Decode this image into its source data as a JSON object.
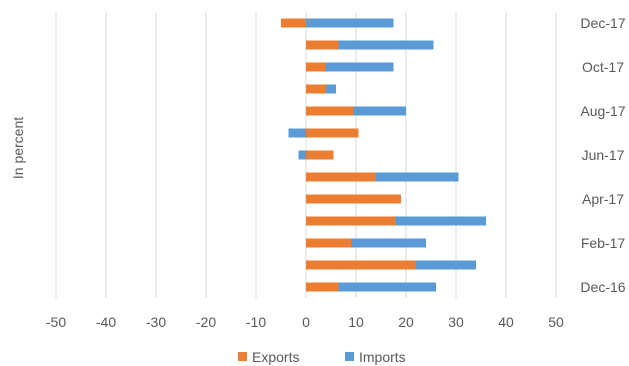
{
  "chart_data": {
    "type": "bar",
    "orientation": "horizontal",
    "stacked": true,
    "title": "",
    "xlabel": "",
    "ylabel": "In percent",
    "xlim": [
      -50,
      50
    ],
    "xticks": [
      -50,
      -40,
      -30,
      -20,
      -10,
      0,
      10,
      20,
      30,
      40,
      50
    ],
    "grid": "vertical",
    "legend": "bottom",
    "categories": [
      "Dec-16",
      "Jan-17",
      "Feb-17",
      "Mar-17",
      "Apr-17",
      "May-17",
      "Jun-17",
      "Jul-17",
      "Aug-17",
      "Sep-17",
      "Oct-17",
      "Nov-17",
      "Dec-17"
    ],
    "shown_category_labels": [
      "Dec-16",
      "Feb-17",
      "Apr-17",
      "Jun-17",
      "Aug-17",
      "Oct-17",
      "Dec-17"
    ],
    "series": [
      {
        "name": "Exports",
        "color": "#ed7d31",
        "values": [
          6.5,
          22,
          9,
          18,
          19,
          14,
          5.5,
          10.5,
          9.5,
          4,
          4,
          6.5,
          -5
        ]
      },
      {
        "name": "Imports",
        "color": "#5b9bd5",
        "values": [
          19.5,
          12,
          15,
          18,
          0,
          16.5,
          -1.5,
          -3.5,
          10.5,
          2,
          13.5,
          19,
          17.5
        ]
      }
    ]
  }
}
